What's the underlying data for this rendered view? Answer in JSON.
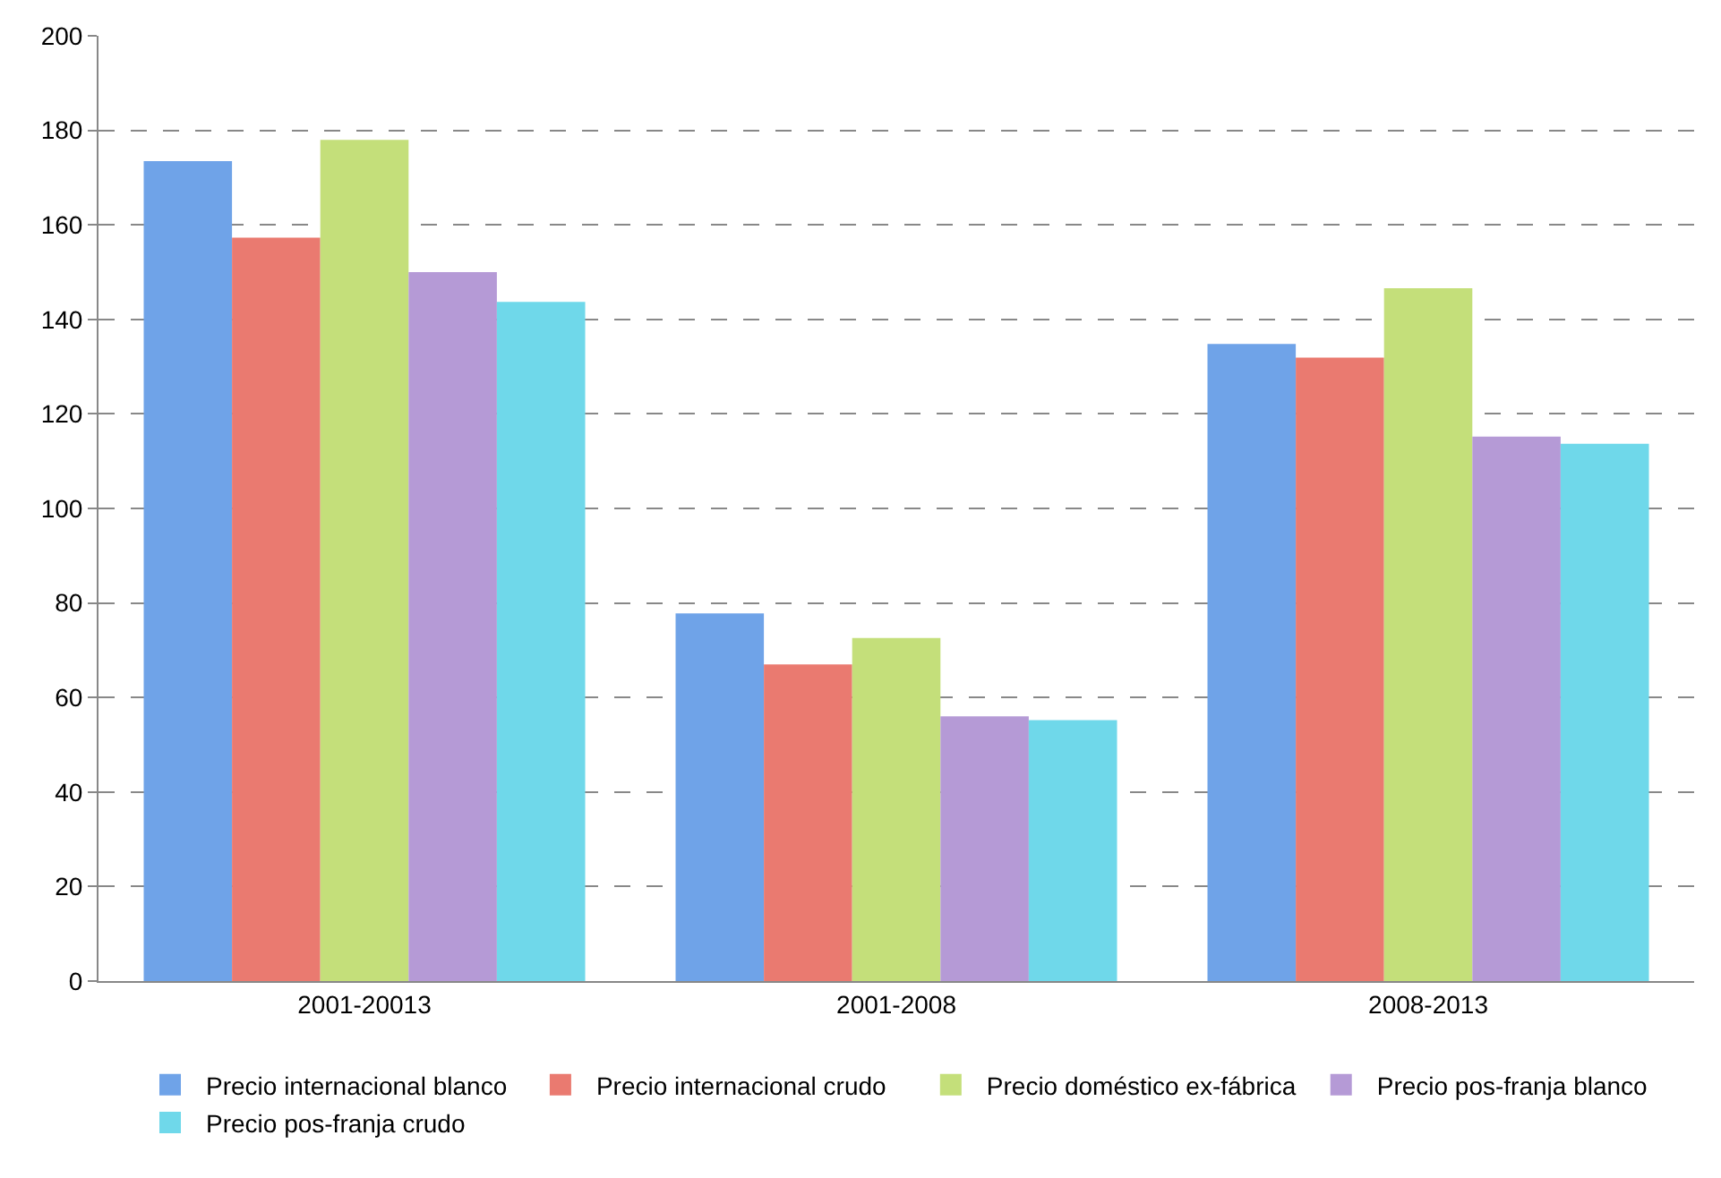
{
  "chart_data": {
    "type": "bar",
    "categories": [
      "2001-20013",
      "2001-2008",
      "2008-2013"
    ],
    "series": [
      {
        "name": "Precio internacional blanco",
        "color": "#6fa3e8",
        "values": [
          173.5,
          77.8,
          134.8
        ]
      },
      {
        "name": "Precio internacional crudo",
        "color": "#ea7a70",
        "values": [
          157.3,
          67,
          131.9
        ]
      },
      {
        "name": "Precio doméstico ex-fábrica",
        "color": "#c4df7a",
        "values": [
          178,
          72.6,
          146.6
        ]
      },
      {
        "name": "Precio pos-franja blanco",
        "color": "#b59ad6",
        "values": [
          150,
          56,
          115.2
        ]
      },
      {
        "name": "Precio pos-franja crudo",
        "color": "#6fd8ea",
        "values": [
          143.7,
          55.2,
          113.7
        ]
      }
    ],
    "ylim": [
      0,
      200
    ],
    "yticks": [
      0,
      20,
      40,
      60,
      80,
      100,
      120,
      140,
      160,
      180,
      200
    ],
    "grid": "y",
    "legend": "bottom"
  }
}
